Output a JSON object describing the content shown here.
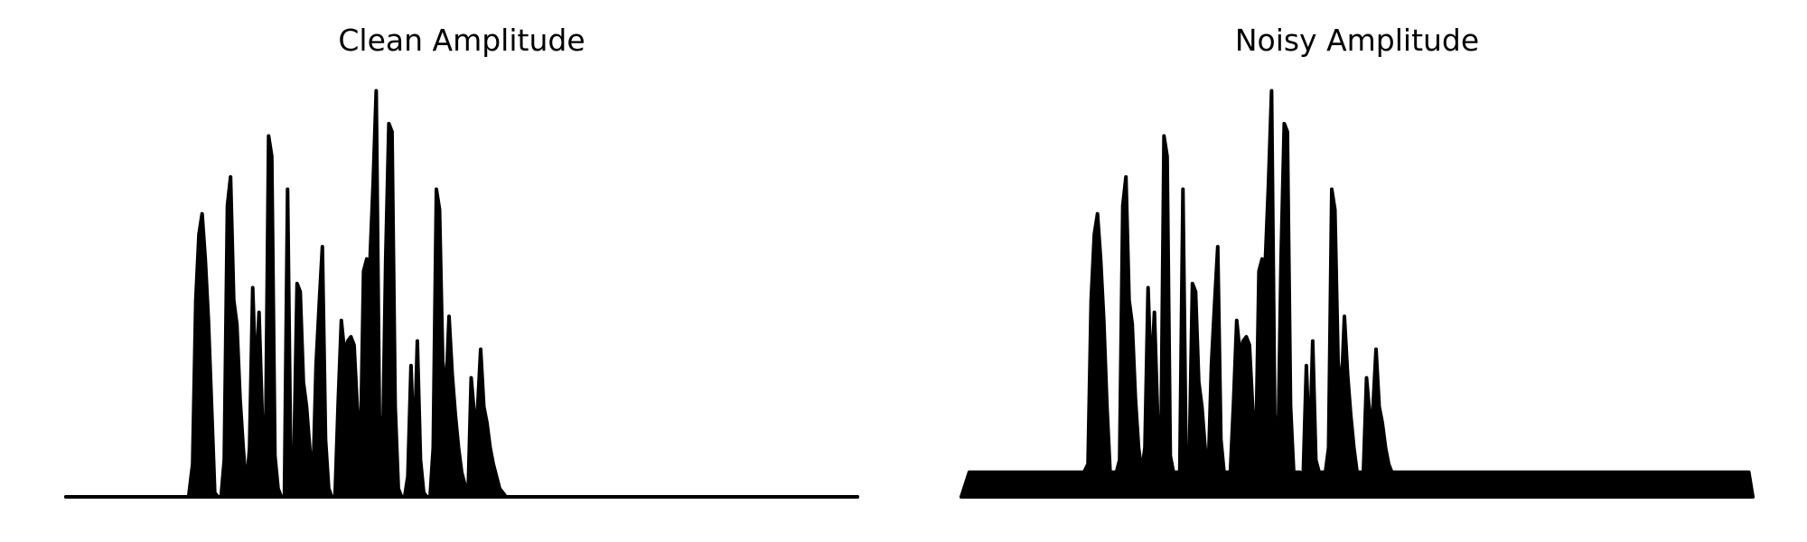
{
  "chart_data": [
    {
      "type": "area",
      "title": "Clean Amplitude",
      "xlabel": "",
      "ylabel": "",
      "axes_visible": false,
      "grid": false,
      "xlim": [
        0,
        1
      ],
      "ylim": [
        0,
        1
      ],
      "color": "#000000",
      "x": [
        0.0,
        0.155,
        0.16,
        0.164,
        0.168,
        0.172,
        0.176,
        0.18,
        0.184,
        0.188,
        0.192,
        0.196,
        0.2,
        0.204,
        0.208,
        0.212,
        0.216,
        0.22,
        0.224,
        0.228,
        0.232,
        0.236,
        0.24,
        0.244,
        0.248,
        0.252,
        0.256,
        0.26,
        0.264,
        0.268,
        0.272,
        0.276,
        0.28,
        0.284,
        0.288,
        0.292,
        0.296,
        0.3,
        0.304,
        0.308,
        0.312,
        0.316,
        0.32,
        0.324,
        0.328,
        0.332,
        0.336,
        0.34,
        0.344,
        0.348,
        0.352,
        0.356,
        0.36,
        0.364,
        0.368,
        0.372,
        0.376,
        0.38,
        0.384,
        0.388,
        0.392,
        0.396,
        0.4,
        0.404,
        0.408,
        0.412,
        0.416,
        0.42,
        0.424,
        0.428,
        0.432,
        0.436,
        0.44,
        0.444,
        0.448,
        0.452,
        0.456,
        0.46,
        0.464,
        0.468,
        0.472,
        0.476,
        0.48,
        0.484,
        0.488,
        0.492,
        0.496,
        0.5,
        0.504,
        0.508,
        0.512,
        0.516,
        0.52,
        0.524,
        0.528,
        0.532,
        0.536,
        0.54,
        0.544,
        0.548,
        0.552,
        0.556,
        0.56,
        0.564,
        0.568,
        0.572,
        0.576,
        0.58,
        0.584,
        0.588,
        0.592,
        0.596,
        0.6,
        0.604,
        0.608,
        0.612,
        0.616,
        0.62,
        0.624,
        0.628,
        0.632,
        0.636,
        0.64,
        0.644,
        0.648,
        0.652,
        0.656,
        0.66,
        0.664,
        0.668,
        0.672,
        0.676,
        0.68,
        0.684,
        0.688,
        0.692,
        0.696,
        0.7,
        1.0
      ],
      "y": [
        0.0,
        0.0,
        0.08,
        0.48,
        0.64,
        0.69,
        0.58,
        0.43,
        0.22,
        0.01,
        0.0,
        0.0,
        0.09,
        0.71,
        0.78,
        0.48,
        0.42,
        0.24,
        0.12,
        0.02,
        0.12,
        0.51,
        0.28,
        0.45,
        0.2,
        0.09,
        0.88,
        0.83,
        0.1,
        0.02,
        0.0,
        0.0,
        0.75,
        0.08,
        0.09,
        0.52,
        0.5,
        0.28,
        0.22,
        0.12,
        0.03,
        0.32,
        0.47,
        0.61,
        0.14,
        0.02,
        0.0,
        0.0,
        0.23,
        0.43,
        0.35,
        0.38,
        0.39,
        0.37,
        0.22,
        0.1,
        0.55,
        0.58,
        0.57,
        0.76,
        0.99,
        0.2,
        0.1,
        0.58,
        0.91,
        0.89,
        0.22,
        0.02,
        0.0,
        0.0,
        0.05,
        0.32,
        0.1,
        0.38,
        0.09,
        0.01,
        0.0,
        0.0,
        0.12,
        0.75,
        0.7,
        0.33,
        0.25,
        0.44,
        0.3,
        0.2,
        0.12,
        0.06,
        0.03,
        0.0,
        0.29,
        0.2,
        0.21,
        0.36,
        0.22,
        0.18,
        0.12,
        0.08,
        0.05,
        0.02,
        0.01,
        0.0,
        0.0,
        0.0,
        0.0,
        0.0,
        0.0,
        0.0,
        0.0,
        0.0,
        0.0,
        0.0,
        0.0,
        0.0,
        0.0,
        0.0,
        0.0,
        0.0,
        0.0,
        0.0,
        0.0,
        0.0,
        0.0,
        0.0,
        0.0,
        0.0,
        0.0,
        0.0,
        0.0,
        0.0,
        0.0,
        0.0,
        0.0,
        0.0,
        0.0,
        0.0,
        0.0,
        0.0,
        0.0
      ]
    },
    {
      "type": "area",
      "title": "Noisy Amplitude",
      "xlabel": "",
      "ylabel": "",
      "axes_visible": false,
      "grid": false,
      "xlim": [
        0,
        1
      ],
      "ylim": [
        0,
        1
      ],
      "color": "#000000",
      "noise_floor": 0.06,
      "noise_floor_end_x": 0.995,
      "x": [
        0.0,
        0.01,
        0.155,
        0.16,
        0.164,
        0.168,
        0.172,
        0.176,
        0.18,
        0.184,
        0.188,
        0.192,
        0.196,
        0.2,
        0.204,
        0.208,
        0.212,
        0.216,
        0.22,
        0.224,
        0.228,
        0.232,
        0.236,
        0.24,
        0.244,
        0.248,
        0.252,
        0.256,
        0.26,
        0.264,
        0.268,
        0.272,
        0.276,
        0.28,
        0.284,
        0.288,
        0.292,
        0.296,
        0.3,
        0.304,
        0.308,
        0.312,
        0.316,
        0.32,
        0.324,
        0.328,
        0.332,
        0.336,
        0.34,
        0.344,
        0.348,
        0.352,
        0.356,
        0.36,
        0.364,
        0.368,
        0.372,
        0.376,
        0.38,
        0.384,
        0.388,
        0.392,
        0.396,
        0.4,
        0.404,
        0.408,
        0.412,
        0.416,
        0.42,
        0.424,
        0.428,
        0.432,
        0.436,
        0.44,
        0.444,
        0.448,
        0.452,
        0.456,
        0.46,
        0.464,
        0.468,
        0.472,
        0.476,
        0.48,
        0.484,
        0.488,
        0.492,
        0.496,
        0.5,
        0.504,
        0.508,
        0.512,
        0.516,
        0.52,
        0.524,
        0.528,
        0.532,
        0.536,
        0.54,
        0.544,
        0.548,
        0.552,
        0.556,
        0.56,
        0.564,
        0.568,
        0.572,
        0.576,
        0.58,
        0.584,
        0.588,
        0.592,
        0.596,
        0.6,
        0.604,
        0.608,
        0.612,
        0.616,
        0.62,
        0.624,
        0.628,
        0.632,
        0.636,
        0.64,
        0.644,
        0.648,
        0.652,
        0.656,
        0.66,
        0.664,
        0.668,
        0.672,
        0.676,
        0.68,
        0.684,
        0.688,
        0.692,
        0.696,
        0.7,
        0.995,
        1.0
      ],
      "y": [
        0.0,
        0.06,
        0.06,
        0.08,
        0.48,
        0.64,
        0.69,
        0.58,
        0.43,
        0.22,
        0.06,
        0.06,
        0.06,
        0.09,
        0.71,
        0.78,
        0.48,
        0.42,
        0.24,
        0.12,
        0.06,
        0.12,
        0.51,
        0.28,
        0.45,
        0.2,
        0.09,
        0.88,
        0.83,
        0.1,
        0.06,
        0.06,
        0.06,
        0.75,
        0.08,
        0.09,
        0.52,
        0.5,
        0.28,
        0.22,
        0.12,
        0.06,
        0.32,
        0.47,
        0.61,
        0.14,
        0.06,
        0.06,
        0.06,
        0.23,
        0.43,
        0.35,
        0.38,
        0.39,
        0.37,
        0.22,
        0.1,
        0.55,
        0.58,
        0.57,
        0.76,
        0.99,
        0.2,
        0.1,
        0.58,
        0.91,
        0.89,
        0.22,
        0.06,
        0.06,
        0.06,
        0.05,
        0.32,
        0.1,
        0.38,
        0.09,
        0.06,
        0.06,
        0.06,
        0.12,
        0.75,
        0.7,
        0.33,
        0.25,
        0.44,
        0.3,
        0.2,
        0.12,
        0.06,
        0.06,
        0.06,
        0.29,
        0.2,
        0.21,
        0.36,
        0.22,
        0.18,
        0.12,
        0.08,
        0.06,
        0.06,
        0.06,
        0.06,
        0.06,
        0.06,
        0.06,
        0.06,
        0.06,
        0.06,
        0.06,
        0.06,
        0.06,
        0.06,
        0.06,
        0.06,
        0.06,
        0.06,
        0.06,
        0.06,
        0.06,
        0.06,
        0.06,
        0.06,
        0.06,
        0.06,
        0.06,
        0.06,
        0.06,
        0.06,
        0.06,
        0.06,
        0.06,
        0.06,
        0.06,
        0.06,
        0.06,
        0.06,
        0.06,
        0.06,
        0.06,
        0.0
      ]
    }
  ]
}
